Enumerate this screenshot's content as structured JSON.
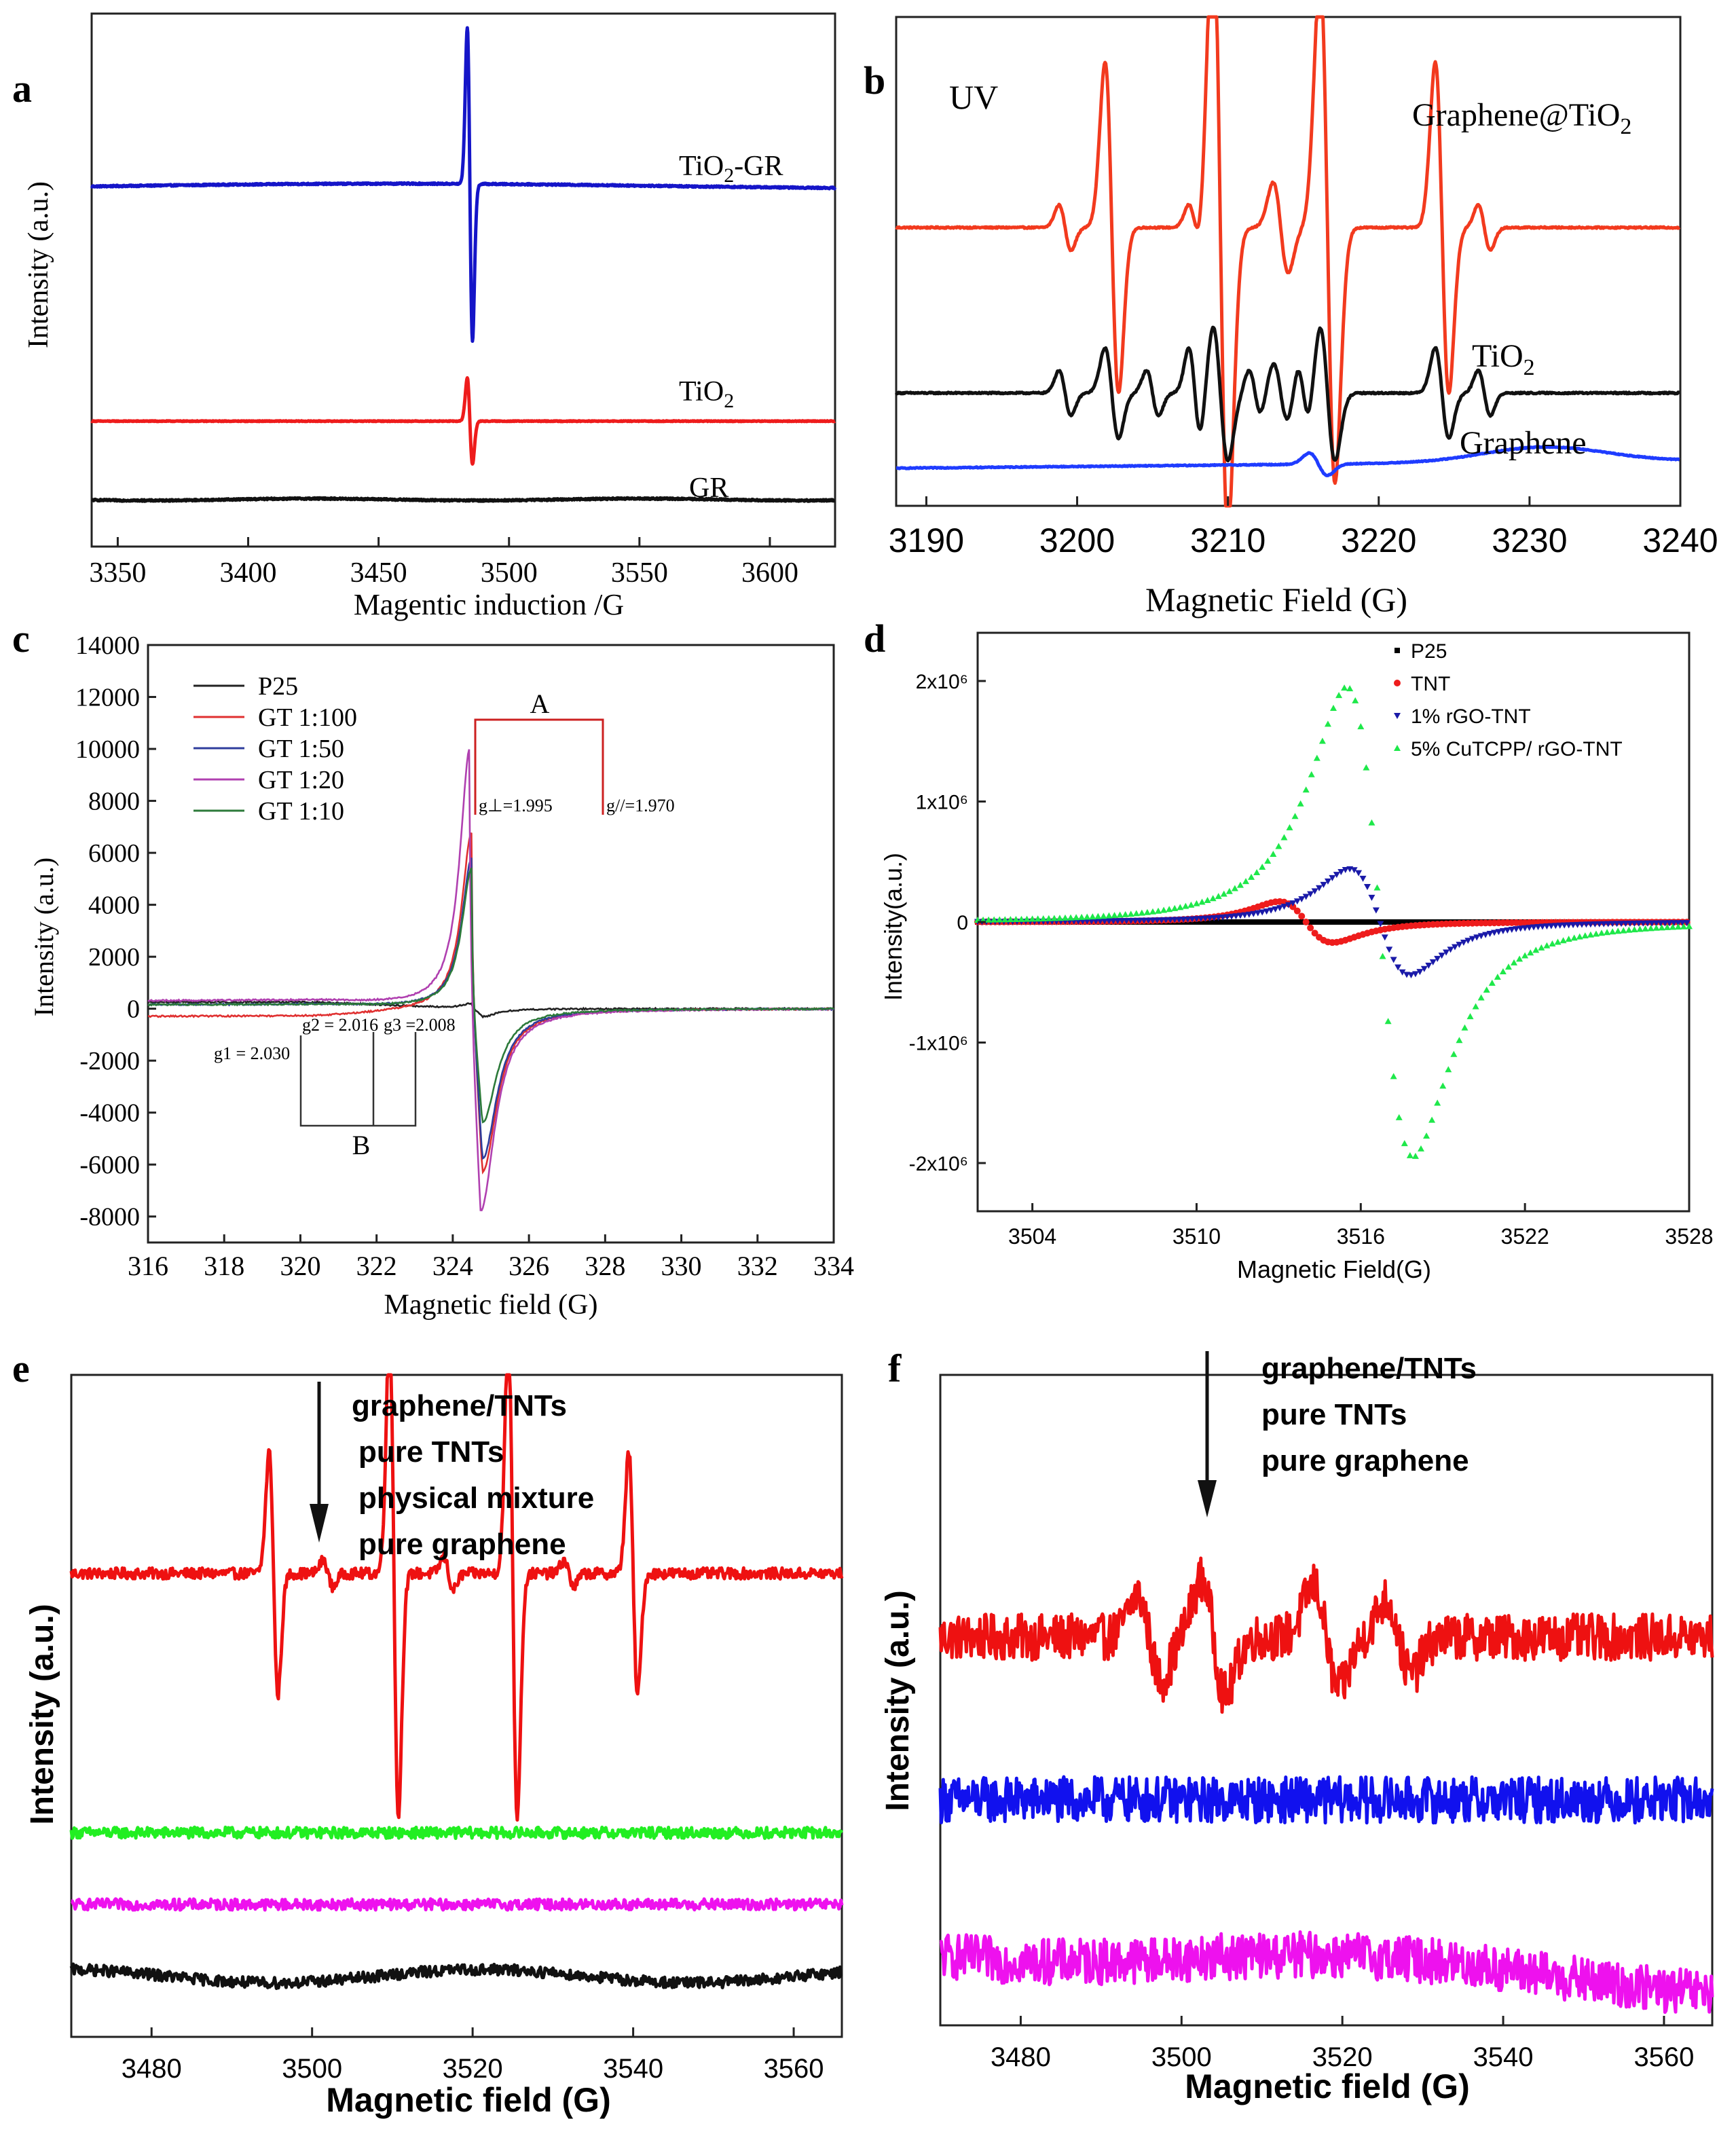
{
  "chart_data": [
    {
      "id": "a",
      "type": "line",
      "panel_label": "a",
      "xlabel": "Magentic induction /G",
      "ylabel": "Intensity (a.u.)",
      "xlim": [
        3340,
        3625
      ],
      "ylim": [
        -0.6,
        6.2
      ],
      "xticks": [
        "3350",
        "3400",
        "3450",
        "3500",
        "3550",
        "3600"
      ],
      "yticks": [],
      "series": [
        {
          "name": "TiO2-GR",
          "label": "TiO",
          "sub": "2",
          "label_suffix": "-GR",
          "color": "#1515c8",
          "baseline": 4.0,
          "center": 3485,
          "amp": 2.0,
          "width": 1.0,
          "noise": 0.01,
          "wave": [
            [
              0.015,
              0.03
            ]
          ]
        },
        {
          "name": "TiO2",
          "label": "TiO",
          "sub": "2",
          "label_suffix": "",
          "color": "#ee1c1c",
          "baseline": 1.0,
          "center": 3485,
          "amp": 0.55,
          "width": 1.0,
          "noise": 0.005
        },
        {
          "name": "GR",
          "label": "GR",
          "sub": "",
          "label_suffix": "",
          "color": "#111111",
          "baseline": 0.0,
          "center": 3485,
          "amp": 0.0,
          "width": 1.0,
          "noise": 0.01,
          "wave": [
            [
              0.05,
              0.012
            ]
          ]
        }
      ]
    },
    {
      "id": "b",
      "type": "line",
      "panel_label": "b",
      "xlabel": "Magnetic Field (G)",
      "ylabel": "",
      "xlim": [
        3188,
        3240
      ],
      "ylim": [
        -0.5,
        6.0
      ],
      "xticks": [
        "3190",
        "3200",
        "3210",
        "3220",
        "3230",
        "3240"
      ],
      "yticks": [],
      "annotations": [
        {
          "text": "UV"
        }
      ],
      "series": [
        {
          "name": "Graphene@TiO2",
          "label": "Graphene@TiO",
          "sub": "2",
          "label_suffix": "",
          "color": "#f23a1e",
          "baseline": 3.2,
          "noise": 0.01,
          "lines": [
            [
              3199.2,
              0.3,
              0.4
            ],
            [
              3202.3,
              2.2,
              0.45
            ],
            [
              3207.8,
              0.3,
              0.4
            ],
            [
              3209.5,
              4.1,
              0.5
            ],
            [
              3213.5,
              0.6,
              0.5
            ],
            [
              3216.6,
              3.4,
              0.5
            ],
            [
              3224.2,
              2.2,
              0.45
            ],
            [
              3227.0,
              0.3,
              0.4
            ]
          ]
        },
        {
          "name": "TiO2",
          "label": "TiO",
          "sub": "2",
          "label_suffix": "",
          "color": "#111111",
          "baseline": 1.0,
          "noise": 0.01,
          "lines": [
            [
              3199.2,
              0.3,
              0.4
            ],
            [
              3202.3,
              0.6,
              0.45
            ],
            [
              3205.0,
              0.3,
              0.4
            ],
            [
              3207.8,
              0.6,
              0.4
            ],
            [
              3209.5,
              0.9,
              0.5
            ],
            [
              3211.8,
              0.3,
              0.4
            ],
            [
              3213.5,
              0.4,
              0.5
            ],
            [
              3215.0,
              0.4,
              0.4
            ],
            [
              3216.6,
              0.9,
              0.5
            ],
            [
              3224.2,
              0.6,
              0.45
            ],
            [
              3227.0,
              0.3,
              0.4
            ]
          ]
        },
        {
          "name": "Graphene",
          "label": "Graphene",
          "sub": "",
          "label_suffix": "",
          "color": "#1f3cff",
          "baseline": 0.0,
          "noise": 0.006,
          "lines": [
            [
              3216.0,
              0.15,
              0.6
            ]
          ],
          "bumps": [
            [
              3231,
              0.2,
              4.0
            ]
          ],
          "drift": 0.1
        }
      ]
    },
    {
      "id": "c",
      "type": "line",
      "panel_label": "c",
      "xlabel": "Magnetic field (G)",
      "ylabel": "Intensity (a.u.)",
      "xlim": [
        316,
        334
      ],
      "ylim": [
        -9000,
        14000
      ],
      "xticks": [
        "316",
        "318",
        "320",
        "322",
        "324",
        "326",
        "328",
        "330",
        "332",
        "334"
      ],
      "yticks": [
        "-8000",
        "-6000",
        "-4000",
        "-2000",
        "0",
        "2000",
        "4000",
        "6000",
        "8000",
        "10000",
        "12000",
        "14000"
      ],
      "legend_position": "top-left",
      "bracket_A": "A",
      "bracket_B": "B",
      "g_labels": [
        "g⊥=1.995",
        "g//=1.970",
        "g1 = 2.030",
        "g2 = 2.016",
        "g3 =2.008"
      ],
      "series": [
        {
          "name": "P25",
          "color": "#222222",
          "pos": 200,
          "neg": -300,
          "center": 324.5,
          "offset_left": 250
        },
        {
          "name": "GT 1:100",
          "color": "#e03030",
          "pos": 6800,
          "neg": -6300,
          "center": 324.5,
          "offset_left": -300
        },
        {
          "name": "GT 1:50",
          "color": "#2f3d9c",
          "pos": 5800,
          "neg": -5800,
          "center": 324.5,
          "offset_left": 150
        },
        {
          "name": "GT 1:20",
          "color": "#b040b0",
          "pos": 10000,
          "neg": -7800,
          "center": 324.45,
          "offset_left": 300
        },
        {
          "name": "GT 1:10",
          "color": "#2c7a3a",
          "pos": 5400,
          "neg": -4400,
          "center": 324.5,
          "offset_left": 150
        }
      ]
    },
    {
      "id": "d",
      "type": "scatter",
      "panel_label": "d",
      "xlabel": "Magnetic Field(G)",
      "ylabel": "Intensity(a.u.)",
      "xlim": [
        3502,
        3528
      ],
      "ylim": [
        -2400000,
        2400000
      ],
      "xticks": [
        "3504",
        "3510",
        "3516",
        "3522",
        "3528"
      ],
      "yticks": [
        "-2x10⁶",
        "-1x10⁶",
        "0",
        "1x10⁶",
        "2x10⁶"
      ],
      "legend_position": "top-right",
      "series": [
        {
          "name": "P25",
          "color": "#000000",
          "marker": "square",
          "center": 3515.5,
          "amp": 0,
          "width": 2.0
        },
        {
          "name": "TNT",
          "color": "#ee1c1c",
          "marker": "circle",
          "center": 3514.0,
          "amp": 170000,
          "width": 1.7
        },
        {
          "name": "1%  rGO-TNT",
          "color": "#1a1aa8",
          "marker": "triangle-down",
          "center": 3516.7,
          "amp": 440000,
          "width": 1.9
        },
        {
          "name": "5% CuTCPP/ rGO-TNT",
          "color": "#1ee84a",
          "marker": "triangle-up",
          "center": 3516.7,
          "amp": 1950000,
          "width": 2.1
        }
      ]
    },
    {
      "id": "e",
      "type": "line",
      "panel_label": "e",
      "xlabel": "Magnetic field (G)",
      "ylabel": "Intensity (a.u.)",
      "xlim": [
        3470,
        3566
      ],
      "ylim": [
        -0.5,
        5.5
      ],
      "xticks": [
        "3480",
        "3500",
        "3520",
        "3540",
        "3560"
      ],
      "yticks": [],
      "legend_items": [
        "graphene/TNTs",
        "pure TNTs",
        "physical mixture",
        "pure graphene"
      ],
      "series": [
        {
          "name": "graphene/TNTs",
          "color": "#ee1111",
          "baseline": 3.7,
          "noise": 0.05,
          "lines": [
            [
              3495.2,
              1.1,
              0.55
            ],
            [
              3510.2,
              2.2,
              0.55
            ],
            [
              3525.0,
              2.2,
              0.55
            ],
            [
              3540.0,
              1.1,
              0.55
            ],
            [
              3502,
              0.12,
              0.6
            ],
            [
              3517,
              0.15,
              0.6
            ],
            [
              3532,
              0.12,
              0.6
            ]
          ]
        },
        {
          "name": "pure TNTs",
          "color": "#22ee22",
          "baseline": 1.35,
          "noise": 0.05
        },
        {
          "name": "physical mixture",
          "color": "#ee11ee",
          "baseline": 0.7,
          "noise": 0.05
        },
        {
          "name": "pure graphene",
          "color": "#111111",
          "baseline": 0.05,
          "noise": 0.05,
          "wave": [
            [
              0.12,
              0.06
            ]
          ]
        }
      ]
    },
    {
      "id": "f",
      "type": "line",
      "panel_label": "f",
      "xlabel": "Magnetic field (G)",
      "ylabel": "Intensity (a.u.)",
      "xlim": [
        3470,
        3566
      ],
      "ylim": [
        -0.6,
        5.6
      ],
      "xticks": [
        "3480",
        "3500",
        "3520",
        "3540",
        "3560"
      ],
      "yticks": [],
      "legend_items": [
        "graphene/TNTs",
        "pure TNTs",
        "pure graphene"
      ],
      "series": [
        {
          "name": "graphene/TNTs",
          "color": "#ee1111",
          "baseline": 3.1,
          "noise": 0.22,
          "lines": [
            [
              3496,
              0.4,
              1.5
            ],
            [
              3504,
              0.55,
              1.5
            ],
            [
              3518,
              0.5,
              1.6
            ],
            [
              3527,
              0.35,
              1.6
            ]
          ]
        },
        {
          "name": "pure TNTs",
          "color": "#1111ee",
          "baseline": 1.55,
          "noise": 0.22
        },
        {
          "name": "pure graphene",
          "color": "#ee11ee",
          "baseline": 0.15,
          "noise": 0.22,
          "wave": [
            [
              0.07,
              0.1
            ]
          ],
          "drift": -0.35
        }
      ]
    }
  ]
}
